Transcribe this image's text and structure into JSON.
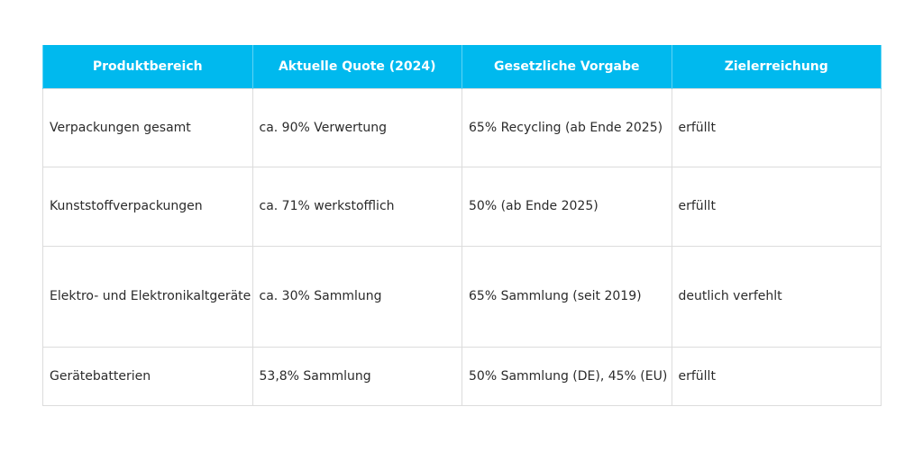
{
  "table": {
    "headers": [
      "Produktbereich",
      "Aktuelle Quote (2024)",
      "Gesetzliche Vorgabe",
      "Zielerreichung"
    ],
    "rows": [
      [
        "Verpackungen gesamt",
        "ca. 90% Verwertung",
        "65% Recycling (ab Ende 2025)",
        "erfüllt"
      ],
      [
        "Kunststoffverpackungen",
        "ca. 71% werkstofflich",
        "50% (ab Ende 2025)",
        "erfüllt"
      ],
      [
        "Elektro- und Elektronikaltgeräte",
        "ca. 30% Sammlung",
        "65% Sammlung (seit 2019)",
        "deutlich verfehlt"
      ],
      [
        "Gerätebatterien",
        "53,8% Sammlung",
        "50% Sammlung (DE), 45% (EU)",
        "erfüllt"
      ]
    ]
  },
  "colors": {
    "header_background": "#00b9ee",
    "header_text": "#ffffff",
    "grid_line": "#dcdcdc"
  }
}
